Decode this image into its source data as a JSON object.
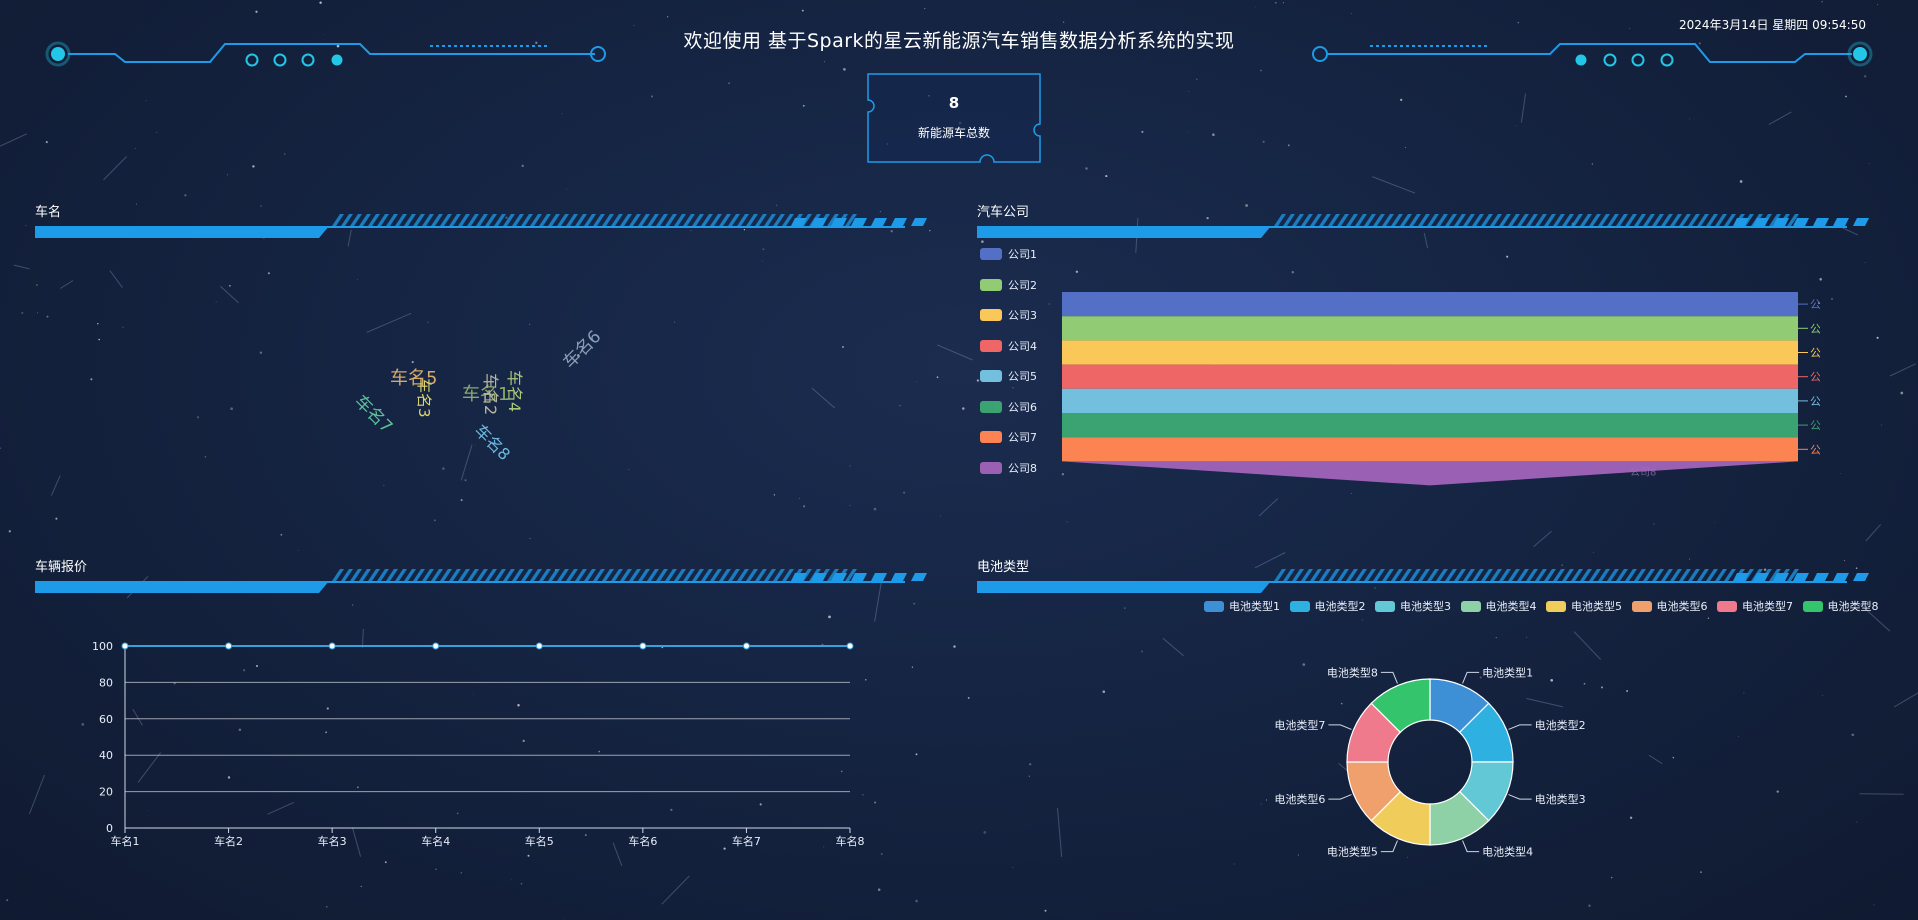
{
  "header": {
    "title": "欢迎使用 基于Spark的星云新能源汽车销售数据分析系统的实现",
    "datetime": "2024年3月14日 星期四 09:54:50"
  },
  "counter": {
    "value": "8",
    "label": "新能源车总数"
  },
  "panels": {
    "car_names": {
      "title": "车名"
    },
    "companies": {
      "title": "汽车公司"
    },
    "prices": {
      "title": "车辆报价"
    },
    "battery": {
      "title": "电池类型"
    }
  },
  "colors": {
    "accent": "#1e9be8",
    "deco": "#23c6e6",
    "line": "#37a2da"
  },
  "chart_data": [
    {
      "type": "wordcloud",
      "words": [
        {
          "text": "车名5",
          "color": "#d6a86a",
          "rotate": 0
        },
        {
          "text": "车名3",
          "color": "#d9d46c",
          "rotate": 90
        },
        {
          "text": "车名1",
          "color": "#8ea86f",
          "rotate": 0
        },
        {
          "text": "车名2",
          "color": "#b8b4a0",
          "rotate": 90
        },
        {
          "text": "车名4",
          "color": "#a8c778",
          "rotate": 90
        },
        {
          "text": "车名6",
          "color": "#8aa0b8",
          "rotate": -45
        },
        {
          "text": "车名7",
          "color": "#5cc09b",
          "rotate": 45
        },
        {
          "text": "车名8",
          "color": "#6cb9e0",
          "rotate": 45
        }
      ]
    },
    {
      "type": "funnel",
      "categories": [
        "公司1",
        "公司2",
        "公司3",
        "公司4",
        "公司5",
        "公司6",
        "公司7",
        "公司8"
      ],
      "values": [
        100,
        100,
        100,
        100,
        100,
        100,
        100,
        0
      ],
      "colors": [
        "#5470c6",
        "#91cc75",
        "#fac858",
        "#ee6666",
        "#73c0de",
        "#3ba272",
        "#fc8452",
        "#9a60b4"
      ],
      "legend": "left"
    },
    {
      "type": "line",
      "categories": [
        "车名1",
        "车名2",
        "车名3",
        "车名4",
        "车名5",
        "车名6",
        "车名7",
        "车名8"
      ],
      "values": [
        100,
        100,
        100,
        100,
        100,
        100,
        100,
        100
      ],
      "ylim": [
        0,
        100
      ],
      "yticks": [
        0,
        20,
        40,
        60,
        80,
        100
      ],
      "grid": true
    },
    {
      "type": "pie",
      "categories": [
        "电池类型1",
        "电池类型2",
        "电池类型3",
        "电池类型4",
        "电池类型5",
        "电池类型6",
        "电池类型7",
        "电池类型8"
      ],
      "values": [
        1,
        1,
        1,
        1,
        1,
        1,
        1,
        1
      ],
      "colors": [
        "#3d8fd6",
        "#2eb0e0",
        "#62c8d6",
        "#8fd1a6",
        "#f0cc5a",
        "#f0a06c",
        "#ef7a8c",
        "#33c46c"
      ],
      "legend": "top",
      "donut": true
    }
  ]
}
